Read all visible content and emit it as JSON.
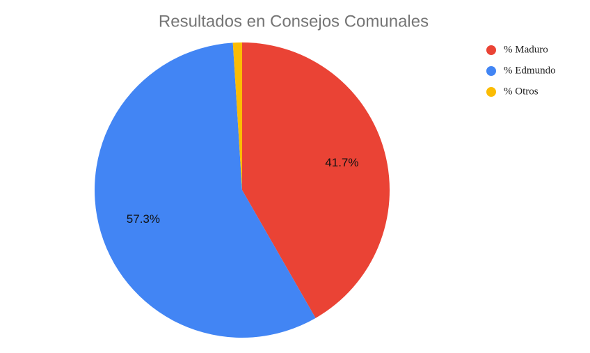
{
  "chart_data": {
    "type": "pie",
    "title": "Resultados en Consejos Comunales",
    "categories": [
      "% Maduro",
      "% Edmundo",
      "% Otros"
    ],
    "values": [
      41.7,
      57.3,
      1.0
    ],
    "value_labels": [
      "41.7%",
      "57.3%",
      null
    ],
    "colors": [
      "#ea4335",
      "#4285f4",
      "#fbbc04"
    ],
    "legend": "right"
  }
}
